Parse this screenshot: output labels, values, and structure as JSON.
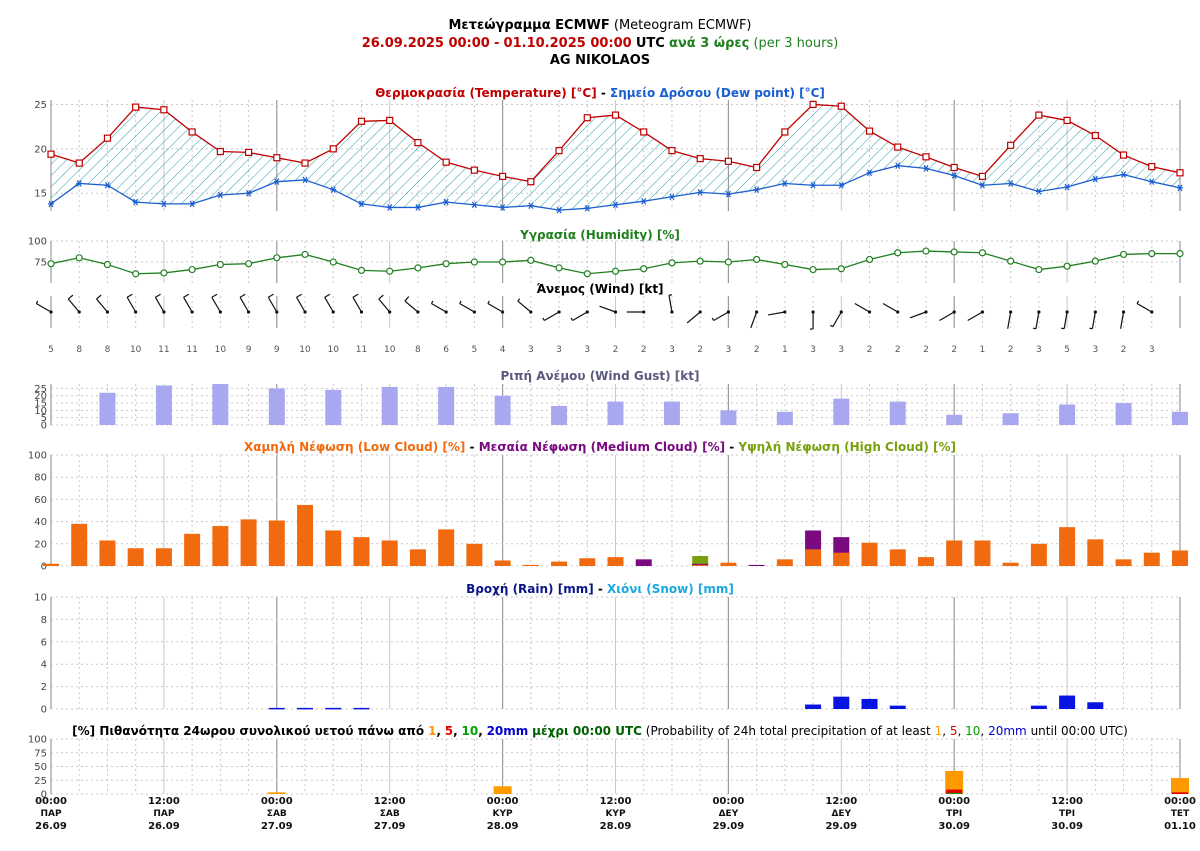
{
  "header": {
    "line1_bold": "Μετεώγραμμα ECMWF",
    "line1_rest": "(Meteogram ECMWF)",
    "line2_from": "26.09.2025 00:00",
    "line2_sep": "-",
    "line2_to": "01.10.2025 00:00",
    "line2_utc": "UTC",
    "line2_step": "ανά 3 ώρες",
    "line2_step_en": "(per 3 hours)",
    "line3": "AG NIKOLAOS"
  },
  "colors": {
    "temp": "#c00000",
    "dew": "#1a5fd0",
    "humidity": "#208020",
    "gust": "#a8a8f0",
    "low_cloud": "#f26a0f",
    "mid_cloud": "#7a0a80",
    "high_cloud": "#7aa010",
    "rain": "#0a14e0",
    "snow": "#1aa8e0",
    "grid": "#c8c8c8",
    "p1": "#ff9900",
    "p5": "#e00000",
    "p10": "#00a000",
    "p20": "#0000d0"
  },
  "chart_data": [
    {
      "type": "line",
      "title_a": "Θερμοκρασία (Temperature) [°C]",
      "title_sep": " - ",
      "title_b": "Σημείο Δρόσου (Dew point) [°C]",
      "ylim": [
        13,
        25.5
      ],
      "yticks": [
        15,
        20,
        25
      ],
      "series": [
        {
          "name": "Temperature",
          "values": [
            19.4,
            18.4,
            21.2,
            24.7,
            24.4,
            21.9,
            19.7,
            19.6,
            19.0,
            18.4,
            20.0,
            23.1,
            23.2,
            20.7,
            18.5,
            17.6,
            16.9,
            16.3,
            19.8,
            23.5,
            23.8,
            21.9,
            19.8,
            18.9,
            18.6,
            17.9,
            21.9,
            25.0,
            24.8,
            22.0,
            20.2,
            19.1,
            17.9,
            16.9,
            20.4,
            23.8,
            23.2,
            21.5,
            19.3,
            18.0,
            17.3
          ]
        },
        {
          "name": "Dew point",
          "values": [
            13.8,
            16.1,
            15.9,
            14.0,
            13.8,
            13.8,
            14.8,
            15.0,
            16.3,
            16.5,
            15.4,
            13.8,
            13.4,
            13.4,
            14.0,
            13.7,
            13.4,
            13.6,
            13.1,
            13.3,
            13.7,
            14.1,
            14.6,
            15.1,
            14.9,
            15.4,
            16.1,
            15.9,
            15.9,
            17.3,
            18.1,
            17.8,
            17.0,
            15.9,
            16.1,
            15.2,
            15.7,
            16.6,
            17.1,
            16.3,
            15.6
          ]
        }
      ]
    },
    {
      "type": "line",
      "title": "Υγρασία (Humidity) [%]",
      "ylim": [
        50,
        100
      ],
      "yticks": [
        75,
        100
      ],
      "series": [
        {
          "name": "Humidity",
          "values": [
            73,
            80,
            72,
            61,
            62,
            66,
            72,
            73,
            80,
            84,
            75,
            65,
            64,
            68,
            73,
            75,
            75,
            77,
            68,
            61,
            64,
            67,
            74,
            76,
            75,
            78,
            72,
            66,
            67,
            78,
            86,
            88,
            87,
            86,
            76,
            66,
            70,
            76,
            84,
            85,
            85
          ]
        }
      ]
    },
    {
      "type": "wind",
      "title": "Άνεμος (Wind) [kt]",
      "speed": [
        5,
        8,
        8,
        10,
        11,
        11,
        10,
        9,
        9,
        10,
        10,
        11,
        10,
        8,
        6,
        5,
        4,
        3,
        3,
        3,
        2,
        2,
        3,
        2,
        3,
        2,
        1,
        3,
        3,
        2,
        2,
        2,
        2,
        1,
        2,
        3,
        5,
        3,
        2,
        3
      ],
      "direction_deg": [
        300,
        320,
        320,
        330,
        330,
        330,
        330,
        330,
        330,
        330,
        330,
        330,
        320,
        310,
        300,
        300,
        300,
        310,
        240,
        240,
        290,
        270,
        350,
        230,
        240,
        200,
        260,
        180,
        210,
        300,
        300,
        250,
        240,
        240,
        190,
        190,
        190,
        190,
        190,
        300
      ]
    },
    {
      "type": "bar",
      "title": "Ριπή Ανέμου (Wind Gust) [kt]",
      "ylim": [
        0,
        28
      ],
      "yticks": [
        0,
        5,
        10,
        15,
        20,
        25
      ],
      "series": [
        {
          "name": "Wind Gust",
          "values": [
            22,
            27,
            28,
            25,
            24,
            26,
            26,
            20,
            13,
            16,
            16,
            10,
            9,
            18,
            16,
            7,
            8,
            14,
            15,
            9
          ]
        }
      ]
    },
    {
      "type": "bar",
      "title_a": "Χαμηλή Νέφωση (Low Cloud) [%]",
      "title_b": "Μεσαία Νέφωση (Medium Cloud) [%]",
      "title_c": "Υψηλή Νέφωση (High Cloud) [%]",
      "ylim": [
        0,
        100
      ],
      "yticks": [
        0,
        20,
        40,
        60,
        80,
        100
      ],
      "series": [
        {
          "name": "Low Cloud",
          "values": [
            2,
            38,
            23,
            16,
            16,
            29,
            36,
            42,
            41,
            55,
            32,
            26,
            23,
            15,
            33,
            20,
            5,
            1,
            4,
            7,
            8,
            0,
            0,
            1,
            3,
            0,
            6,
            15,
            12,
            21,
            15,
            8,
            23,
            23,
            3,
            20,
            35,
            24,
            6,
            12,
            14
          ]
        },
        {
          "name": "Medium Cloud",
          "values": [
            0,
            0,
            0,
            0,
            0,
            0,
            0,
            0,
            0,
            0,
            0,
            0,
            0,
            0,
            0,
            0,
            0,
            0,
            0,
            0,
            0,
            6,
            0,
            2,
            0,
            1,
            0,
            32,
            26,
            0,
            0,
            0,
            0,
            0,
            0,
            0,
            0,
            0,
            0,
            0,
            0
          ]
        },
        {
          "name": "High Cloud",
          "values": [
            0,
            0,
            0,
            0,
            0,
            0,
            0,
            0,
            0,
            0,
            0,
            0,
            0,
            0,
            0,
            0,
            0,
            0,
            0,
            0,
            0,
            0,
            0,
            9,
            0,
            0,
            0,
            0,
            0,
            0,
            0,
            0,
            0,
            0,
            0,
            0,
            0,
            0,
            0,
            0,
            0
          ]
        }
      ]
    },
    {
      "type": "bar",
      "title_a": "Βροχή (Rain) [mm]",
      "title_b": "Χιόνι (Snow) [mm]",
      "ylim": [
        0,
        10
      ],
      "yticks": [
        0,
        2,
        4,
        6,
        8,
        10
      ],
      "series": [
        {
          "name": "Rain",
          "values": [
            0,
            0,
            0,
            0,
            0,
            0,
            0,
            0,
            0.1,
            0.1,
            0.1,
            0.1,
            0,
            0,
            0,
            0,
            0,
            0,
            0,
            0,
            0,
            0,
            0,
            0,
            0,
            0,
            0,
            0.4,
            1.1,
            0.9,
            0.3,
            0,
            0,
            0,
            0,
            0.3,
            1.2,
            0.6,
            0,
            0,
            0
          ]
        },
        {
          "name": "Snow",
          "values": [
            0,
            0,
            0,
            0,
            0,
            0,
            0,
            0,
            0,
            0,
            0,
            0,
            0,
            0,
            0,
            0,
            0,
            0,
            0,
            0,
            0,
            0,
            0,
            0,
            0,
            0,
            0,
            0,
            0,
            0,
            0,
            0,
            0,
            0,
            0,
            0,
            0,
            0,
            0,
            0,
            0
          ]
        }
      ]
    },
    {
      "type": "bar",
      "title_a": "[%] Πιθανότητα 24ωρου συνολικού υετού πάνω από",
      "t1": "1",
      "c1": ",",
      "t5": "5",
      "c2": ",",
      "t10": "10",
      "c3": ",",
      "t20": "20mm",
      "title_b": "μέχρι 00:00 UTC",
      "title_c": "(Probability of 24h total precipitation of at least",
      "title_d": "until 00:00 UTC)",
      "ylim": [
        0,
        100
      ],
      "yticks": [
        0,
        25,
        50,
        75,
        100
      ],
      "categories": [
        "27.09",
        "28.09",
        "29.09",
        "30.09",
        "01.10"
      ],
      "series": [
        {
          "name": "1mm",
          "values": [
            3,
            14,
            0,
            42,
            29
          ]
        },
        {
          "name": "5mm",
          "values": [
            0,
            0,
            0,
            8,
            3
          ]
        },
        {
          "name": "10mm",
          "values": [
            0,
            0,
            0,
            2,
            0
          ]
        },
        {
          "name": "20mm",
          "values": [
            0,
            0,
            0,
            0,
            0
          ]
        }
      ]
    }
  ],
  "time_axis": [
    {
      "time": "00:00",
      "day": "ΠΑΡ",
      "date": "26.09"
    },
    {
      "time": "12:00",
      "day": "ΠΑΡ",
      "date": "26.09"
    },
    {
      "time": "00:00",
      "day": "ΣΑΒ",
      "date": "27.09"
    },
    {
      "time": "12:00",
      "day": "ΣΑΒ",
      "date": "27.09"
    },
    {
      "time": "00:00",
      "day": "ΚΥΡ",
      "date": "28.09"
    },
    {
      "time": "12:00",
      "day": "ΚΥΡ",
      "date": "28.09"
    },
    {
      "time": "00:00",
      "day": "ΔΕΥ",
      "date": "29.09"
    },
    {
      "time": "12:00",
      "day": "ΔΕΥ",
      "date": "29.09"
    },
    {
      "time": "00:00",
      "day": "ΤΡΙ",
      "date": "30.09"
    },
    {
      "time": "12:00",
      "day": "ΤΡΙ",
      "date": "30.09"
    },
    {
      "time": "00:00",
      "day": "ΤΕΤ",
      "date": "01.10"
    }
  ]
}
